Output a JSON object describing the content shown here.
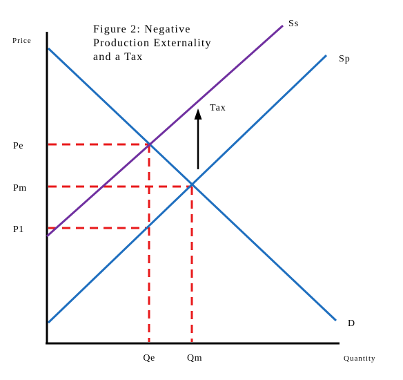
{
  "title_lines": [
    "Figure 2: Negative",
    "Production Externality",
    "and a Tax"
  ],
  "axes": {
    "y_title": "Price",
    "x_title": "Quantity"
  },
  "curves": {
    "social_supply": "Ss",
    "private_supply": "Sp",
    "demand": "D"
  },
  "tax_label": "Tax",
  "price_labels": {
    "pe": "Pe",
    "pm": "Pm",
    "p1": "P1"
  },
  "quantity_labels": {
    "qe": "Qe",
    "qm": "Qm"
  },
  "colors": {
    "demand": "#1f6fbf",
    "private_supply": "#1f6fbf",
    "social_supply": "#7030a0",
    "guides": "#e8191b",
    "axes": "#000000",
    "tax_arrow": "#000000"
  }
}
